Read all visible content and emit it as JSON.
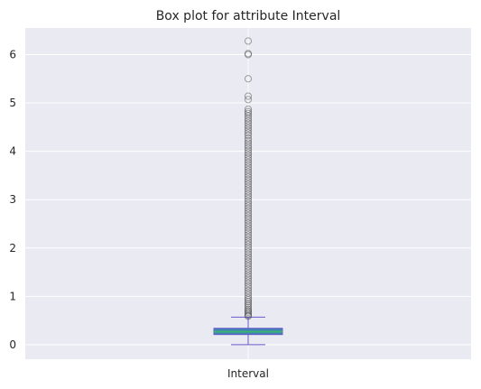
{
  "chart_data": {
    "type": "box",
    "title": "Box plot for attribute Interval",
    "categories": [
      "Interval"
    ],
    "ylim": [
      -0.3,
      6.55
    ],
    "y_ticks": [
      0,
      1,
      2,
      3,
      4,
      5,
      6
    ],
    "y_tick_labels": [
      "0",
      "1",
      "2",
      "3",
      "4",
      "5",
      "6"
    ],
    "grid": true,
    "box": {
      "whisker_low": 0.0,
      "q1": 0.21,
      "median": 0.27,
      "q3": 0.34,
      "whisker_high": 0.57
    },
    "outliers": [
      6.28,
      6.02,
      6.0,
      5.5,
      5.14,
      5.07,
      4.87,
      4.82,
      4.78,
      4.73,
      4.68,
      4.63,
      4.58,
      4.53,
      4.48,
      4.43,
      4.38,
      4.33,
      4.27,
      4.22,
      4.17,
      4.12,
      4.07,
      4.02,
      3.97,
      3.92,
      3.87,
      3.82,
      3.77,
      3.72,
      3.67,
      3.62,
      3.57,
      3.52,
      3.47,
      3.42,
      3.37,
      3.32,
      3.27,
      3.22,
      3.17,
      3.12,
      3.07,
      3.02,
      2.97,
      2.92,
      2.87,
      2.82,
      2.77,
      2.72,
      2.67,
      2.62,
      2.57,
      2.52,
      2.47,
      2.42,
      2.37,
      2.32,
      2.27,
      2.22,
      2.17,
      2.12,
      2.07,
      2.02,
      1.97,
      1.92,
      1.87,
      1.82,
      1.77,
      1.72,
      1.67,
      1.62,
      1.57,
      1.52,
      1.47,
      1.42,
      1.37,
      1.32,
      1.27,
      1.22,
      1.17,
      1.12,
      1.07,
      1.02,
      0.97,
      0.93,
      0.89,
      0.85,
      0.81,
      0.77,
      0.73,
      0.7,
      0.67,
      0.64,
      0.61,
      0.59
    ],
    "colors": {
      "plot_background": "#eaeaf2",
      "grid": "#ffffff",
      "box_fill": "#3f82b4",
      "box_edge": "#6a5acd",
      "median": "#3cb371",
      "whisker": "#6a5acd",
      "outlier_edge": "#3a3a3a"
    }
  }
}
